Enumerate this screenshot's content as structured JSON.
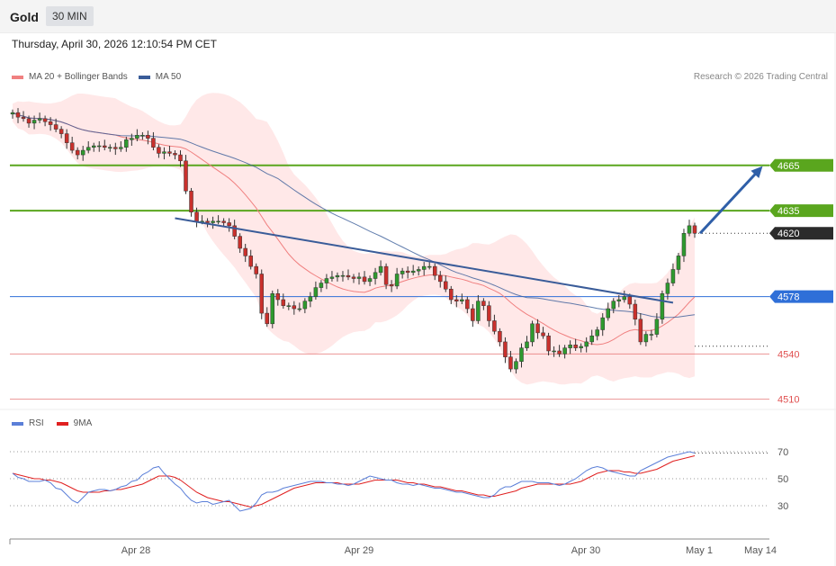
{
  "header": {
    "instrument": "Gold",
    "timeframe": "30 MIN",
    "datetime": "Thursday, April 30, 2026 12:10:54 PM CET"
  },
  "legend": {
    "ma20_label": "MA 20 + Bollinger Bands",
    "ma50_label": "MA 50",
    "rsi_label": "RSI",
    "ma9_label": "9MA",
    "copyright": "Research © 2026 Trading Central"
  },
  "colors": {
    "bull": "#2e9a2e",
    "bear": "#c9302c",
    "ma20": "#f08080",
    "ma50": "#3a5c99",
    "band": "#ffe0e0",
    "resistance": "#5aa61e",
    "pivot": "#2f6fd8",
    "support": "#e05050",
    "last": "#2b2b2b",
    "rsi": "#5b7fd8",
    "rsi_ma": "#e02020"
  },
  "chart_data": [
    {
      "type": "candlestick",
      "title": "Gold 30 MIN",
      "price_range": [
        4505,
        4715
      ],
      "x_ticks": [
        "Apr 28",
        "Apr 29",
        "Apr 30",
        "May 1",
        "May 14"
      ],
      "ohlc_close_path": [
        4700,
        4697,
        4696,
        4693,
        4695,
        4696,
        4694,
        4692,
        4689,
        4686,
        4680,
        4675,
        4672,
        4675,
        4677,
        4678,
        4678,
        4677,
        4677,
        4676,
        4677,
        4682,
        4683,
        4685,
        4685,
        4683,
        4677,
        4673,
        4674,
        4673,
        4672,
        4668,
        4648,
        4634,
        4628,
        4628,
        4627,
        4628,
        4628,
        4627,
        4625,
        4618,
        4610,
        4605,
        4598,
        4593,
        4567,
        4560,
        4580,
        4576,
        4572,
        4572,
        4570,
        4570,
        4575,
        4578,
        4584,
        4587,
        4590,
        4591,
        4592,
        4592,
        4591,
        4590,
        4591,
        4588,
        4590,
        4594,
        4598,
        4586,
        4585,
        4593,
        4595,
        4594,
        4595,
        4596,
        4598,
        4598,
        4592,
        4588,
        4583,
        4576,
        4575,
        4576,
        4570,
        4562,
        4575,
        4572,
        4562,
        4555,
        4548,
        4538,
        4530,
        4535,
        4544,
        4548,
        4560,
        4554,
        4552,
        4542,
        4542,
        4540,
        4544,
        4546,
        4544,
        4545,
        4548,
        4552,
        4556,
        4564,
        4570,
        4575,
        4576,
        4578,
        4573,
        4563,
        4548,
        4553,
        4553,
        4563,
        4580,
        4587,
        4596,
        4605,
        4620,
        4625,
        4620
      ],
      "trend_line": {
        "from": 4630,
        "to": 4574
      },
      "levels": [
        {
          "label": "4665",
          "kind": "resistance"
        },
        {
          "label": "4635",
          "kind": "resistance"
        },
        {
          "label": "4620",
          "kind": "last"
        },
        {
          "label": "4578",
          "kind": "pivot"
        },
        {
          "label": "4540",
          "kind": "support"
        },
        {
          "label": "4510",
          "kind": "support"
        }
      ]
    },
    {
      "type": "line",
      "title": "RSI",
      "ylim": [
        10,
        78
      ],
      "y_ticks": [
        "70",
        "50",
        "30"
      ],
      "series": [
        {
          "name": "RSI",
          "values": [
            54,
            51,
            50,
            48,
            48,
            48,
            49,
            47,
            43,
            42,
            38,
            34,
            32,
            36,
            40,
            41,
            42,
            42,
            41,
            42,
            44,
            45,
            48,
            49,
            53,
            55,
            58,
            59,
            54,
            50,
            46,
            43,
            38,
            34,
            32,
            33,
            33,
            31,
            32,
            33,
            34,
            30,
            26,
            27,
            28,
            32,
            38,
            40,
            40,
            41,
            43,
            44,
            45,
            46,
            47,
            48,
            48,
            48,
            47,
            47,
            46,
            46,
            45,
            46,
            48,
            50,
            52,
            51,
            50,
            49,
            49,
            47,
            46,
            46,
            45,
            46,
            45,
            44,
            43,
            43,
            42,
            41,
            40,
            40,
            39,
            38,
            37,
            36,
            36,
            38,
            42,
            44,
            44,
            46,
            48,
            48,
            48,
            47,
            47,
            47,
            46,
            45,
            46,
            48,
            50,
            53,
            56,
            58,
            59,
            58,
            56,
            55,
            54,
            53,
            52,
            52,
            56,
            58,
            60,
            62,
            64,
            66,
            67,
            68,
            69,
            70,
            69
          ]
        },
        {
          "name": "9MA",
          "values": [
            54,
            53,
            52,
            51,
            50,
            50,
            49,
            49,
            48,
            47,
            45,
            43,
            41,
            40,
            40,
            40,
            40,
            41,
            41,
            42,
            42,
            43,
            44,
            45,
            46,
            48,
            50,
            52,
            52,
            52,
            51,
            49,
            46,
            43,
            40,
            38,
            36,
            35,
            34,
            33,
            33,
            32,
            31,
            30,
            29,
            30,
            31,
            33,
            35,
            37,
            39,
            41,
            43,
            44,
            45,
            46,
            47,
            47,
            47,
            47,
            47,
            46,
            46,
            46,
            46,
            47,
            48,
            49,
            49,
            49,
            49,
            49,
            48,
            47,
            47,
            46,
            46,
            45,
            44,
            44,
            43,
            42,
            41,
            41,
            40,
            39,
            38,
            38,
            37,
            37,
            38,
            39,
            40,
            41,
            43,
            44,
            45,
            46,
            46,
            46,
            46,
            46,
            46,
            46,
            47,
            48,
            50,
            52,
            54,
            55,
            56,
            56,
            56,
            55,
            55,
            54,
            54,
            55,
            56,
            57,
            59,
            61,
            63,
            64,
            65,
            66,
            67
          ]
        }
      ],
      "overbought": 70,
      "neutral": 50,
      "oversold": 30
    }
  ]
}
